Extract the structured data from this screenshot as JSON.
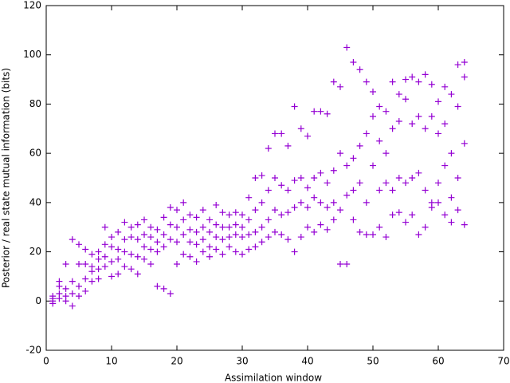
{
  "chart_data": {
    "type": "scatter",
    "xlabel": "Assimilation window",
    "ylabel": "Posterior / real state mutual information (bits)",
    "xlim": [
      0,
      70
    ],
    "ylim": [
      -20,
      120
    ],
    "xticks": [
      0,
      10,
      20,
      30,
      40,
      50,
      60,
      70
    ],
    "yticks": [
      -20,
      0,
      20,
      40,
      60,
      80,
      100,
      120
    ],
    "series": [
      {
        "color": "#9400d3",
        "x": [
          1,
          1,
          1,
          1,
          2,
          2,
          2,
          2,
          3,
          3,
          3,
          3,
          4,
          4,
          4,
          4,
          5,
          5,
          5,
          5,
          6,
          6,
          6,
          6,
          7,
          7,
          7,
          7,
          8,
          8,
          8,
          8,
          9,
          9,
          9,
          9,
          10,
          10,
          10,
          10,
          11,
          11,
          11,
          11,
          12,
          12,
          12,
          12,
          13,
          13,
          13,
          13,
          14,
          14,
          14,
          14,
          15,
          15,
          15,
          15,
          16,
          16,
          16,
          16,
          17,
          17,
          17,
          17,
          18,
          18,
          18,
          18,
          19,
          19,
          19,
          19,
          20,
          20,
          20,
          20,
          21,
          21,
          21,
          21,
          22,
          22,
          22,
          22,
          23,
          23,
          23,
          23,
          24,
          24,
          24,
          24,
          25,
          25,
          25,
          25,
          26,
          26,
          26,
          26,
          27,
          27,
          27,
          27,
          28,
          28,
          28,
          28,
          29,
          29,
          29,
          29,
          30,
          30,
          30,
          30,
          31,
          31,
          31,
          31,
          32,
          32,
          32,
          32,
          33,
          33,
          33,
          33,
          34,
          34,
          34,
          34,
          35,
          35,
          35,
          35,
          36,
          36,
          36,
          36,
          37,
          37,
          37,
          37,
          38,
          38,
          38,
          38,
          39,
          39,
          39,
          39,
          40,
          40,
          40,
          40,
          41,
          41,
          41,
          41,
          42,
          42,
          42,
          42,
          43,
          43,
          43,
          43,
          44,
          44,
          44,
          44,
          45,
          45,
          45,
          45,
          46,
          46,
          46,
          46,
          47,
          47,
          47,
          47,
          48,
          48,
          48,
          48,
          49,
          49,
          49,
          49,
          50,
          50,
          50,
          50,
          51,
          51,
          51,
          51,
          52,
          52,
          52,
          52,
          53,
          53,
          53,
          53,
          54,
          54,
          54,
          54,
          55,
          55,
          55,
          55,
          56,
          56,
          56,
          56,
          57,
          57,
          57,
          57,
          58,
          58,
          58,
          58,
          59,
          59,
          59,
          59,
          60,
          60,
          60,
          60,
          61,
          61,
          61,
          61,
          62,
          62,
          62,
          62,
          63,
          63,
          63,
          63,
          64,
          64,
          64,
          64
        ],
        "values": [
          0,
          1,
          -1,
          2,
          8,
          3,
          1,
          6,
          15,
          5,
          2,
          0,
          25,
          8,
          3,
          -2,
          23,
          15,
          6,
          2,
          21,
          15,
          9,
          4,
          19,
          14,
          12,
          8,
          20,
          17,
          13,
          9,
          30,
          23,
          18,
          14,
          26,
          22,
          16,
          10,
          28,
          21,
          17,
          11,
          32,
          25,
          20,
          14,
          30,
          26,
          19,
          13,
          31,
          25,
          18,
          11,
          33,
          27,
          22,
          17,
          30,
          26,
          21,
          15,
          29,
          24,
          20,
          6,
          34,
          27,
          22,
          5,
          38,
          31,
          25,
          3,
          37,
          30,
          24,
          15,
          40,
          33,
          27,
          19,
          35,
          29,
          24,
          18,
          34,
          28,
          23,
          16,
          37,
          30,
          25,
          20,
          33,
          28,
          22,
          18,
          39,
          31,
          26,
          21,
          36,
          30,
          25,
          19,
          35,
          30,
          26,
          22,
          36,
          31,
          27,
          20,
          35,
          30,
          26,
          19,
          42,
          33,
          27,
          21,
          50,
          37,
          28,
          22,
          51,
          40,
          30,
          24,
          62,
          45,
          33,
          26,
          68,
          50,
          37,
          28,
          68,
          47,
          35,
          27,
          63,
          45,
          36,
          25,
          79,
          49,
          38,
          20,
          70,
          50,
          40,
          26,
          67,
          46,
          38,
          30,
          77,
          50,
          42,
          28,
          77,
          52,
          40,
          31,
          76,
          48,
          38,
          29,
          89,
          53,
          40,
          33,
          87,
          60,
          37,
          15,
          103,
          55,
          43,
          15,
          97,
          58,
          45,
          33,
          94,
          63,
          48,
          28,
          89,
          68,
          40,
          27,
          85,
          75,
          55,
          27,
          79,
          65,
          45,
          30,
          77,
          60,
          48,
          26,
          89,
          70,
          45,
          35,
          84,
          73,
          50,
          36,
          90,
          82,
          48,
          32,
          91,
          72,
          50,
          35,
          89,
          75,
          52,
          27,
          92,
          70,
          45,
          30,
          88,
          75,
          40,
          38,
          81,
          68,
          48,
          40,
          87,
          72,
          55,
          35,
          84,
          60,
          42,
          32,
          96,
          79,
          50,
          37,
          97,
          91,
          64,
          31
        ]
      }
    ]
  }
}
